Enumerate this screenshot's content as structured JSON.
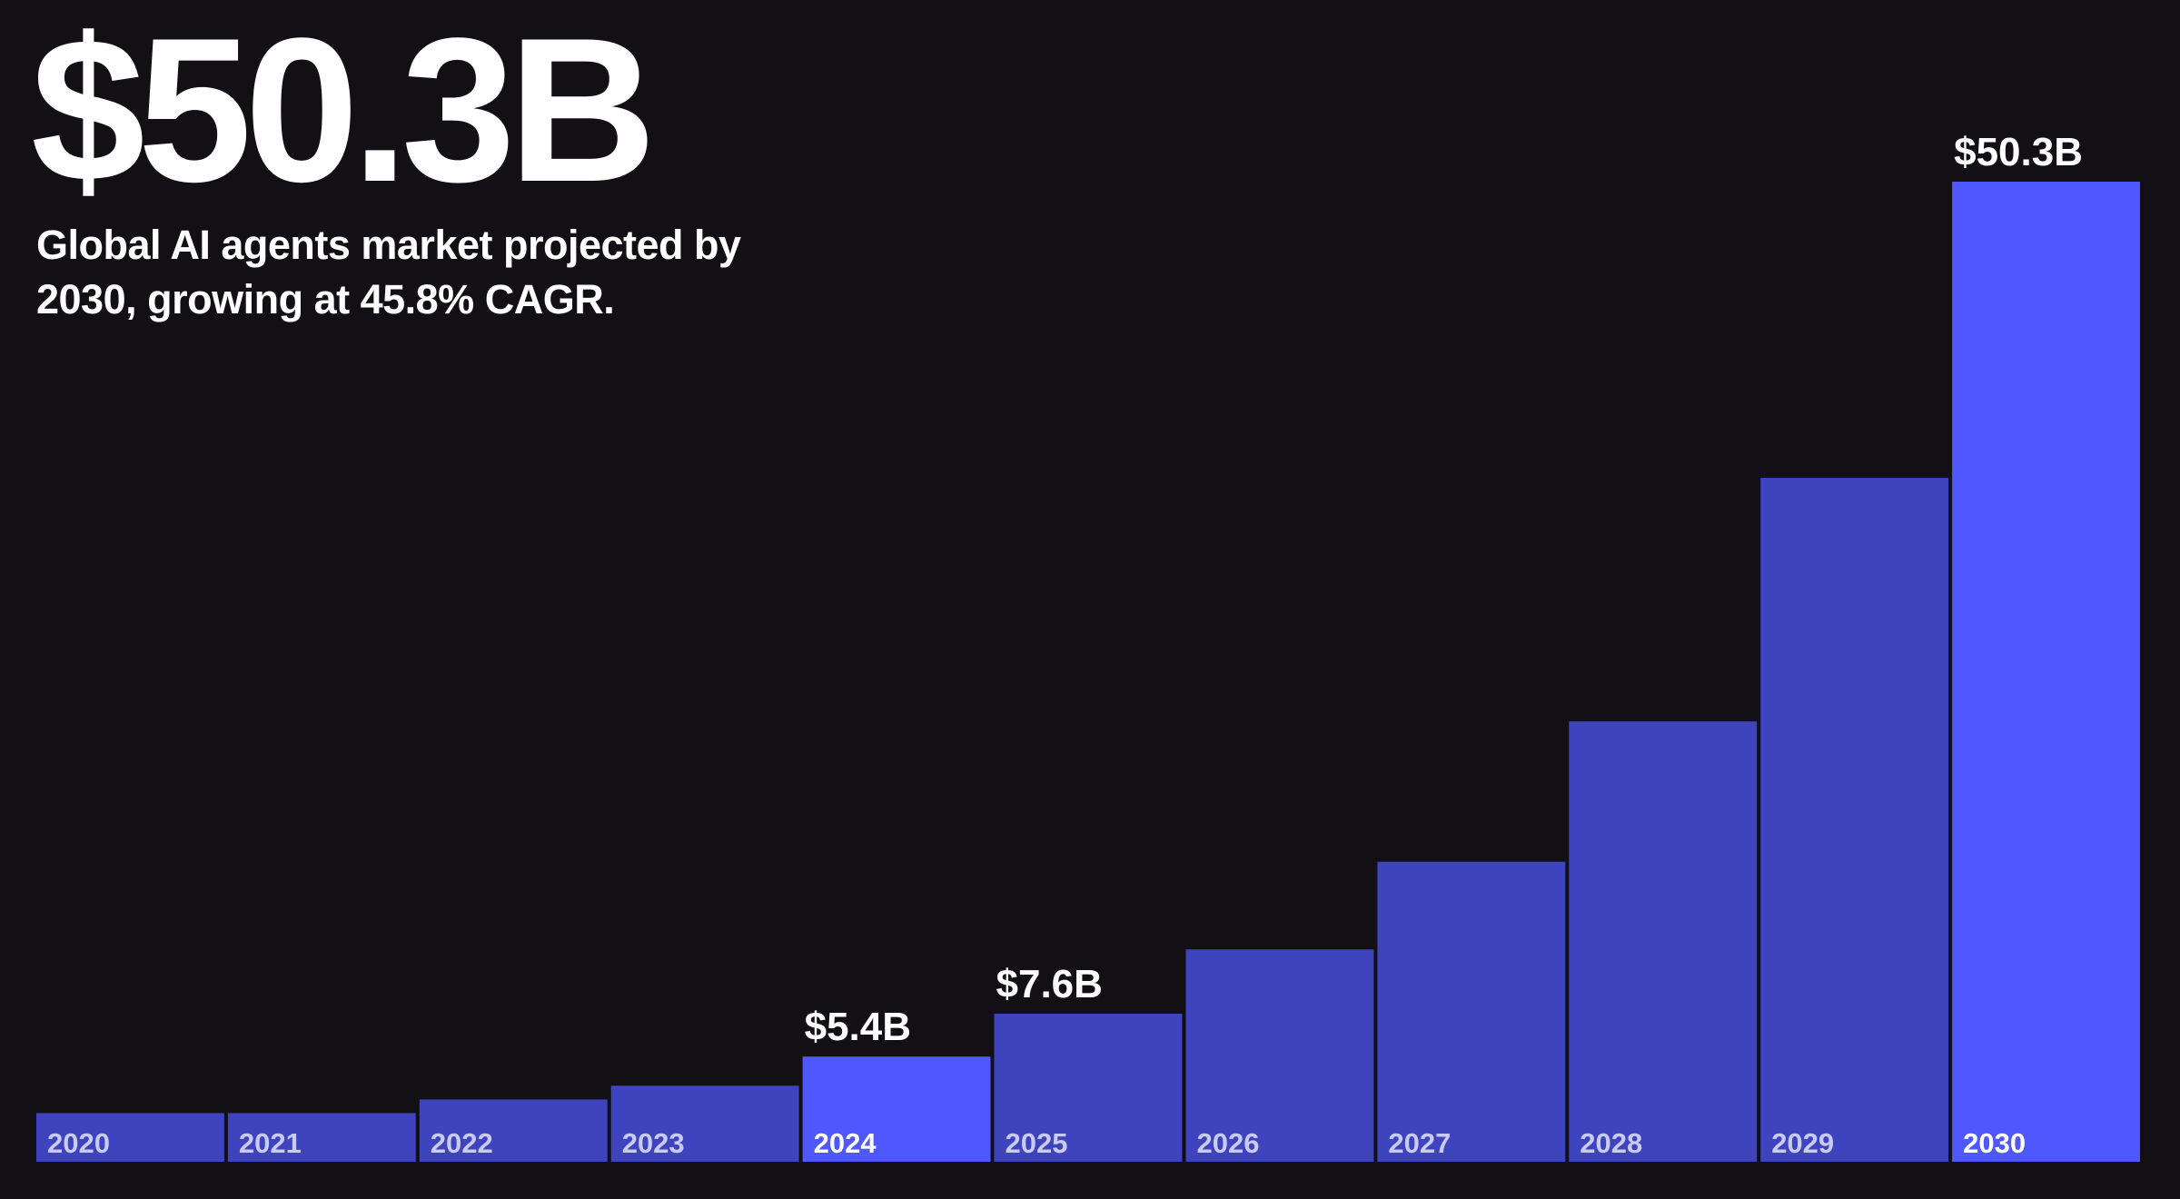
{
  "hero": {
    "headline": "$50.3B",
    "subtitle": "Global AI agents market projected by 2030, growing at 45.8% CAGR."
  },
  "colors": {
    "background": "#121014",
    "bar": "#3d44bd",
    "bar_highlight": "#4f57ff",
    "text": "#ffffff",
    "tick_muted": "#c9cbf5"
  },
  "chart_data": {
    "type": "bar",
    "title": "",
    "xlabel": "",
    "ylabel": "",
    "ylim": [
      0,
      50.3
    ],
    "grid": false,
    "legend": "none",
    "categories": [
      "2020",
      "2021",
      "2022",
      "2023",
      "2024",
      "2025",
      "2026",
      "2027",
      "2028",
      "2029",
      "2030"
    ],
    "values": [
      2.5,
      2.5,
      3.2,
      3.9,
      5.4,
      7.6,
      10.9,
      15.4,
      22.6,
      35.1,
      50.3
    ],
    "highlighted": [
      "2024",
      "2030"
    ],
    "data_labels": [
      {
        "category": "2024",
        "text": "$5.4B"
      },
      {
        "category": "2025",
        "text": "$7.6B"
      },
      {
        "category": "2030",
        "text": "$50.3B"
      }
    ]
  }
}
